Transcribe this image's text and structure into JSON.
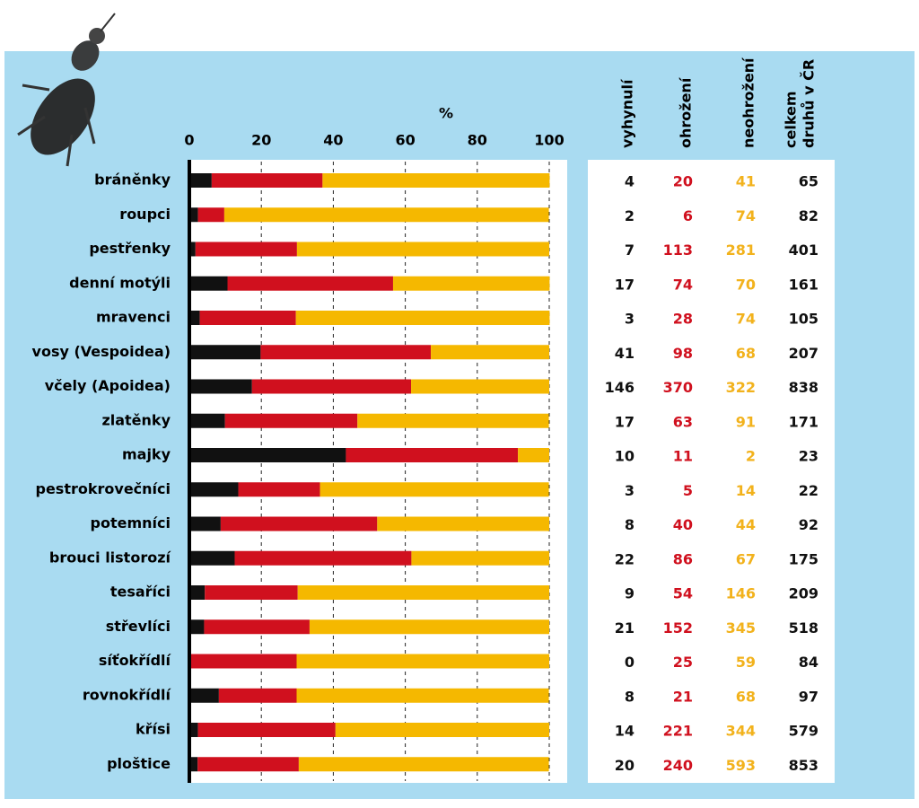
{
  "chart_data": {
    "type": "stacked-bar-horizontal",
    "xlabel": "%",
    "xlim": [
      0,
      100
    ],
    "xticks": [
      0,
      20,
      40,
      60,
      80,
      100
    ],
    "grid": true,
    "categories": [
      "bráněnky",
      "roupci",
      "pestřenky",
      "denní motýli",
      "mravenci",
      "vosy (Vespoidea)",
      "včely (Apoidea)",
      "zlatěnky",
      "majky",
      "pestrokrovečníci",
      "potemníci",
      "brouci listorozí",
      "tesaříci",
      "střevlíci",
      "síťokřídlí",
      "rovnokřídlí",
      "křísi",
      "ploštice"
    ],
    "series": [
      {
        "name": "vyhynulí",
        "color": "#111111",
        "values": [
          6.2,
          2.4,
          1.7,
          10.6,
          2.9,
          19.8,
          17.4,
          9.9,
          43.5,
          13.6,
          8.7,
          12.6,
          4.3,
          4.1,
          0,
          8.2,
          2.4,
          2.3
        ]
      },
      {
        "name": "ohrožení",
        "color": "#d0101e",
        "values": [
          30.8,
          7.3,
          28.2,
          46.0,
          26.7,
          47.3,
          44.2,
          36.8,
          47.8,
          22.7,
          43.5,
          49.1,
          25.8,
          29.3,
          29.8,
          21.6,
          38.2,
          28.1
        ]
      },
      {
        "name": "neohrožení",
        "color": "#f5b800",
        "values": [
          63.1,
          90.2,
          70.1,
          43.5,
          70.5,
          32.9,
          38.4,
          53.2,
          8.7,
          63.6,
          47.8,
          38.3,
          69.9,
          66.6,
          70.2,
          70.1,
          59.4,
          69.5
        ]
      }
    ],
    "table": {
      "total_header": [
        "celkem",
        "druhů v ČR"
      ],
      "rows": [
        [
          4,
          20,
          41,
          65
        ],
        [
          2,
          6,
          74,
          82
        ],
        [
          7,
          113,
          281,
          401
        ],
        [
          17,
          74,
          70,
          161
        ],
        [
          3,
          28,
          74,
          105
        ],
        [
          41,
          98,
          68,
          207
        ],
        [
          146,
          370,
          322,
          838
        ],
        [
          17,
          63,
          91,
          171
        ],
        [
          10,
          11,
          2,
          23
        ],
        [
          3,
          5,
          14,
          22
        ],
        [
          8,
          40,
          44,
          92
        ],
        [
          22,
          86,
          67,
          175
        ],
        [
          9,
          54,
          146,
          209
        ],
        [
          21,
          152,
          345,
          518
        ],
        [
          0,
          25,
          59,
          84
        ],
        [
          8,
          21,
          68,
          97
        ],
        [
          14,
          221,
          344,
          579
        ],
        [
          20,
          240,
          593,
          853
        ]
      ]
    }
  }
}
